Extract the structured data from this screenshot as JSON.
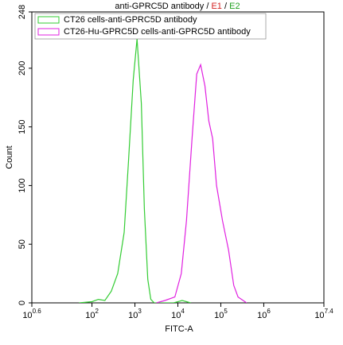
{
  "chart_data": {
    "type": "line",
    "title": [
      {
        "text": "anti-GPRC5D antibody",
        "color": "#000000"
      },
      {
        "text": " / ",
        "color": "#000000"
      },
      {
        "text": "E1",
        "color": "#d42020"
      },
      {
        "text": " / ",
        "color": "#000000"
      },
      {
        "text": "E2",
        "color": "#20a020"
      }
    ],
    "x_label": "FITC-A",
    "y_label": "Count",
    "x_log": true,
    "xlim": [
      3.981,
      25118864
    ],
    "ylim": [
      0,
      248
    ],
    "xticks": [
      {
        "value": 3.981,
        "base": "10",
        "exponent": "0.6"
      },
      {
        "value": 100,
        "base": "10",
        "exponent": "2"
      },
      {
        "value": 1000,
        "base": "10",
        "exponent": "3"
      },
      {
        "value": 10000,
        "base": "10",
        "exponent": "4"
      },
      {
        "value": 100000,
        "base": "10",
        "exponent": "5"
      },
      {
        "value": 1000000,
        "base": "10",
        "exponent": "6"
      },
      {
        "value": 25118864,
        "base": "10",
        "exponent": "7.4"
      }
    ],
    "yticks": [
      0,
      50,
      100,
      150,
      200,
      248
    ],
    "legend": "upper left",
    "series": [
      {
        "name": "CT26 cells-anti-GPRC5D antibody",
        "color": "#33cc33",
        "x": [
          50,
          100,
          141,
          200,
          282,
          398,
          562,
          708,
          912,
          1122,
          1413,
          1660,
          1995,
          2344,
          2818,
          7943,
          12589,
          19953
        ],
        "values": [
          0,
          1,
          3,
          2,
          10,
          25,
          60,
          120,
          190,
          225,
          170,
          80,
          20,
          3,
          0,
          0,
          2,
          0
        ]
      },
      {
        "name": "CT26-Hu-GPRC5D cells-anti-GPRC5D antibody",
        "color": "#e020e0",
        "x": [
          3162,
          5012,
          8511,
          12023,
          15849,
          21380,
          27542,
          33884,
          42658,
          52481,
          64565,
          79433,
          109648,
          151356,
          199526,
          251189,
          398107
        ],
        "values": [
          0,
          2,
          5,
          25,
          70,
          140,
          195,
          203,
          185,
          155,
          140,
          100,
          70,
          45,
          15,
          5,
          0
        ]
      }
    ]
  }
}
